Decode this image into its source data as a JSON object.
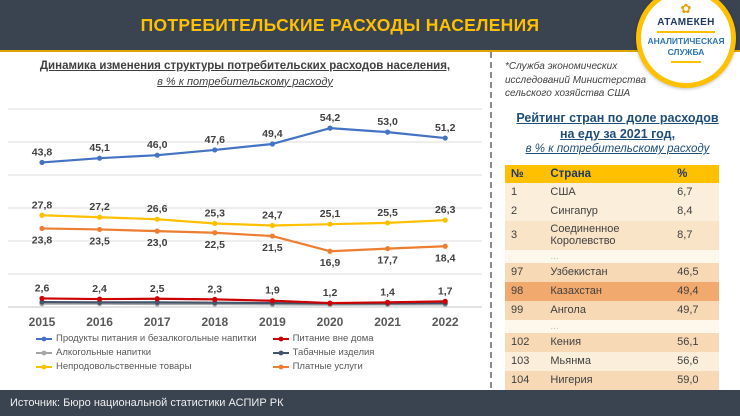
{
  "header": {
    "title": "ПОТРЕБИТЕЛЬСКИЕ РАСХОДЫ НАСЕЛЕНИЯ"
  },
  "logo": {
    "emblem_icon": "flower-emblem-icon",
    "org": "АТАМЕКЕН",
    "unit_line1": "АНАЛИТИЧЕСКАЯ",
    "unit_line2": "СЛУЖБА"
  },
  "colors": {
    "header_band": "#3a4350",
    "accent_gold": "#ffc000",
    "navy": "#1f3864",
    "table_highlight": "#f1a96e",
    "series_food": "#4472C4",
    "series_nonfood": "#FFC000",
    "series_services": "#ED7D31",
    "series_eating_out": "#CC0000",
    "series_tobacco": "#44546A",
    "series_alcohol": "#A6A6A6"
  },
  "chart_data": [
    {
      "type": "line",
      "title": "Динамика изменения структуры потребительских расходов населения,",
      "subtitle": "в % к потребительскому расходу",
      "x": [
        "2015",
        "2016",
        "2017",
        "2018",
        "2019",
        "2020",
        "2021",
        "2022"
      ],
      "ylim": [
        0,
        63
      ],
      "grid": true,
      "gridline_step": 10,
      "legend_position": "bottom",
      "series": [
        {
          "name": "Продукты питания и безалкогольные напитки",
          "color": "#4472C4",
          "values": [
            43.8,
            45.1,
            46.0,
            47.6,
            49.4,
            54.2,
            53.0,
            51.2
          ],
          "labels": "above"
        },
        {
          "name": "Непродовольственные товары",
          "color": "#FFC000",
          "values": [
            27.8,
            27.2,
            26.6,
            25.3,
            24.7,
            25.1,
            25.5,
            26.3
          ],
          "labels": "above"
        },
        {
          "name": "Платные услуги",
          "color": "#ED7D31",
          "values": [
            23.8,
            23.5,
            23.0,
            22.5,
            21.5,
            16.9,
            17.7,
            18.4
          ],
          "labels": "below"
        },
        {
          "name": "Питание вне дома",
          "color": "#CC0000",
          "values": [
            2.6,
            2.4,
            2.5,
            2.3,
            1.9,
            1.2,
            1.4,
            1.7
          ],
          "labels": "above"
        },
        {
          "name": "Табачные изделия",
          "color": "#44546A",
          "values": [
            1.5,
            1.4,
            1.4,
            1.3,
            1.2,
            1.1,
            1.1,
            1.2
          ],
          "labels": "none",
          "estimated": true
        },
        {
          "name": "Алкогольные напитки",
          "color": "#A6A6A6",
          "values": [
            1.0,
            1.0,
            0.9,
            0.9,
            0.8,
            0.7,
            0.8,
            0.8
          ],
          "labels": "none",
          "estimated": true
        }
      ],
      "legend_columns": [
        [
          0,
          5,
          1
        ],
        [
          3,
          4,
          2
        ]
      ]
    },
    {
      "type": "table",
      "title": "Рейтинг стран по доле расходов на еду за 2021 год, в % к потребительскому расходу",
      "headers": [
        "№",
        "Страна",
        "%"
      ],
      "rows": [
        {
          "num": "1",
          "country": "США",
          "value": "6,7",
          "tone": "light"
        },
        {
          "num": "2",
          "country": "Сингапур",
          "value": "8,4",
          "tone": "light"
        },
        {
          "num": "3",
          "country": "Соединенное Королевство",
          "value": "8,7",
          "tone": "mid"
        },
        {
          "num": "",
          "country": "...",
          "value": "",
          "tone": "gap"
        },
        {
          "num": "97",
          "country": "Узбекистан",
          "value": "46,5",
          "tone": "mid2"
        },
        {
          "num": "98",
          "country": "Казахстан",
          "value": "49,4",
          "tone": "highlight"
        },
        {
          "num": "99",
          "country": "Ангола",
          "value": "49,7",
          "tone": "mid2"
        },
        {
          "num": "",
          "country": "...",
          "value": "",
          "tone": "gap"
        },
        {
          "num": "102",
          "country": "Кения",
          "value": "56,1",
          "tone": "mid2"
        },
        {
          "num": "103",
          "country": "Мьянма",
          "value": "56,6",
          "tone": "light"
        },
        {
          "num": "104",
          "country": "Нигерия",
          "value": "59,0",
          "tone": "mid2"
        }
      ]
    }
  ],
  "side_panel": {
    "footnote": "*Служба экономических исследований Министерства сельского хозяйства США",
    "table_title_line1": "Рейтинг стран по доле расходов",
    "table_title_line2": "на еду за 2021 год,",
    "table_title_line3": "в % к потребительскому расходу"
  },
  "footer": {
    "source": "Источник: Бюро национальной статистики АСПИР РК"
  }
}
